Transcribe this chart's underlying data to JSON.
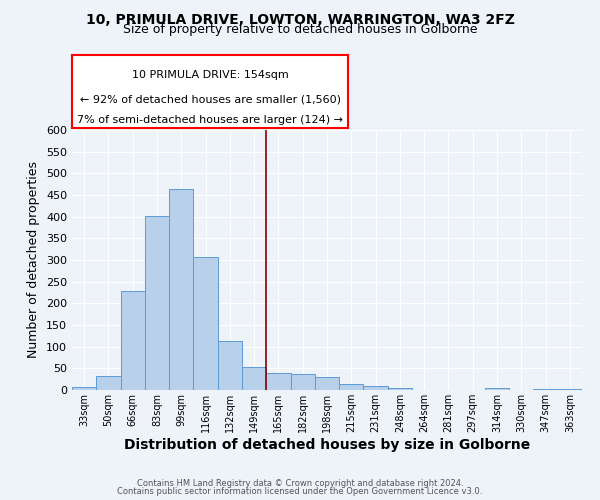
{
  "title1": "10, PRIMULA DRIVE, LOWTON, WARRINGTON, WA3 2FZ",
  "title2": "Size of property relative to detached houses in Golborne",
  "xlabel": "Distribution of detached houses by size in Golborne",
  "ylabel": "Number of detached properties",
  "footer1": "Contains HM Land Registry data © Crown copyright and database right 2024.",
  "footer2": "Contains public sector information licensed under the Open Government Licence v3.0.",
  "bar_labels": [
    "33sqm",
    "50sqm",
    "66sqm",
    "83sqm",
    "99sqm",
    "116sqm",
    "132sqm",
    "149sqm",
    "165sqm",
    "182sqm",
    "198sqm",
    "215sqm",
    "231sqm",
    "248sqm",
    "264sqm",
    "281sqm",
    "297sqm",
    "314sqm",
    "330sqm",
    "347sqm",
    "363sqm"
  ],
  "bar_values": [
    7,
    32,
    228,
    402,
    463,
    307,
    112,
    54,
    40,
    37,
    30,
    15,
    10,
    5,
    0,
    0,
    0,
    5,
    0,
    3,
    3
  ],
  "bar_color": "#b8d0ea",
  "bar_edge_color": "#5b9bd5",
  "vline_x": 7.5,
  "vline_color": "#8b0000",
  "annotation_line1": "10 PRIMULA DRIVE: 154sqm",
  "annotation_line2": "← 92% of detached houses are smaller (1,560)",
  "annotation_line3": "7% of semi-detached houses are larger (124) →",
  "annotation_box_color": "white",
  "annotation_box_edge_color": "red",
  "ylim": [
    0,
    600
  ],
  "yticks": [
    0,
    50,
    100,
    150,
    200,
    250,
    300,
    350,
    400,
    450,
    500,
    550,
    600
  ],
  "bg_color": "#eef2f9",
  "grid_color": "white",
  "title1_fontsize": 10,
  "title2_fontsize": 9,
  "xlabel_fontsize": 10,
  "ylabel_fontsize": 9,
  "annotation_fontsize": 8,
  "tick_fontsize": 7,
  "ytick_fontsize": 8
}
